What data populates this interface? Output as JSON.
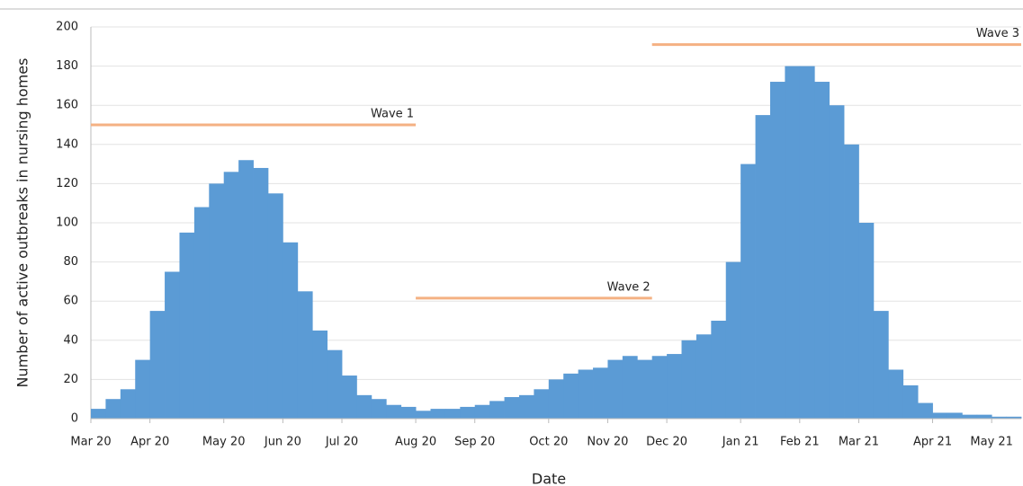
{
  "chart_data": {
    "type": "bar",
    "x_label": "Date",
    "y_label": "Number of active outbreaks in nursing homes",
    "categories": [
      "Mar 20",
      null,
      null,
      null,
      "Apr 20",
      null,
      null,
      null,
      null,
      "May 20",
      null,
      null,
      null,
      "Jun 20",
      null,
      null,
      null,
      "Jul 20",
      null,
      null,
      null,
      null,
      "Aug 20",
      null,
      null,
      null,
      "Sep 20",
      null,
      null,
      null,
      null,
      "Oct 20",
      null,
      null,
      null,
      "Nov 20",
      null,
      null,
      null,
      "Dec 20",
      null,
      null,
      null,
      null,
      "Jan 21",
      null,
      null,
      null,
      "Feb 21",
      null,
      null,
      null,
      "Mar 21",
      null,
      null,
      null,
      null,
      "Apr 21",
      null,
      null,
      null,
      "May 21",
      null
    ],
    "values": [
      5,
      10,
      15,
      30,
      55,
      75,
      95,
      108,
      120,
      126,
      132,
      128,
      115,
      90,
      65,
      45,
      35,
      22,
      12,
      10,
      7,
      6,
      4,
      5,
      5,
      6,
      7,
      9,
      11,
      12,
      15,
      20,
      23,
      25,
      26,
      30,
      32,
      30,
      32,
      33,
      40,
      43,
      50,
      80,
      130,
      155,
      172,
      180,
      180,
      172,
      160,
      140,
      100,
      55,
      25,
      17,
      8,
      3,
      3,
      2,
      2,
      1,
      1
    ],
    "color": "#5b9bd5",
    "ylim": [
      0,
      200
    ],
    "yticks": [
      0,
      20,
      40,
      60,
      80,
      100,
      120,
      140,
      160,
      180,
      200
    ],
    "grid": true,
    "annotations": [
      {
        "text": "Wave 1",
        "y": 150,
        "from": 0,
        "to": 22,
        "color": "#f4b183"
      },
      {
        "text": "Wave 2",
        "y": 61.5,
        "from": 22,
        "to": 38,
        "color": "#f4b183"
      },
      {
        "text": "Wave 3",
        "y": 191,
        "from": 38,
        "to": 63,
        "color": "#f4b183"
      }
    ]
  }
}
